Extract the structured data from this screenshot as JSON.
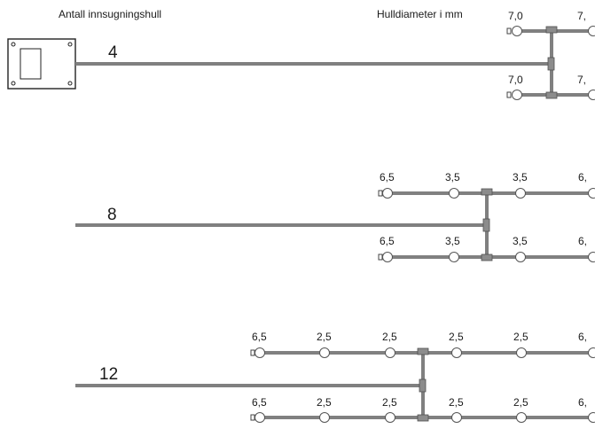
{
  "header": {
    "left_label": "Antall innsugningshull",
    "right_label": "Hulldiameter i mm"
  },
  "configurations": [
    {
      "hole_count": "4",
      "top_branch": [
        "7,0",
        "7,"
      ],
      "bottom_branch": [
        "7,0",
        "7,"
      ]
    },
    {
      "hole_count": "8",
      "top_branch": [
        "6,5",
        "3,5",
        "3,5",
        "6,"
      ],
      "bottom_branch": [
        "6,5",
        "3,5",
        "3,5",
        "6,"
      ]
    },
    {
      "hole_count": "12",
      "top_branch": [
        "6,5",
        "2,5",
        "2,5",
        "2,5",
        "2,5",
        "6,"
      ],
      "bottom_branch": [
        "6,5",
        "2,5",
        "2,5",
        "2,5",
        "2,5",
        "6,"
      ]
    }
  ],
  "colors": {
    "pipe": "#808080",
    "tee": "#8c8c8c",
    "outline": "#555555"
  },
  "icons": {
    "detector": "detector-unit-icon",
    "hole": "suction-hole-icon",
    "tee": "tee-junction-icon",
    "end_cap": "end-cap-icon"
  }
}
